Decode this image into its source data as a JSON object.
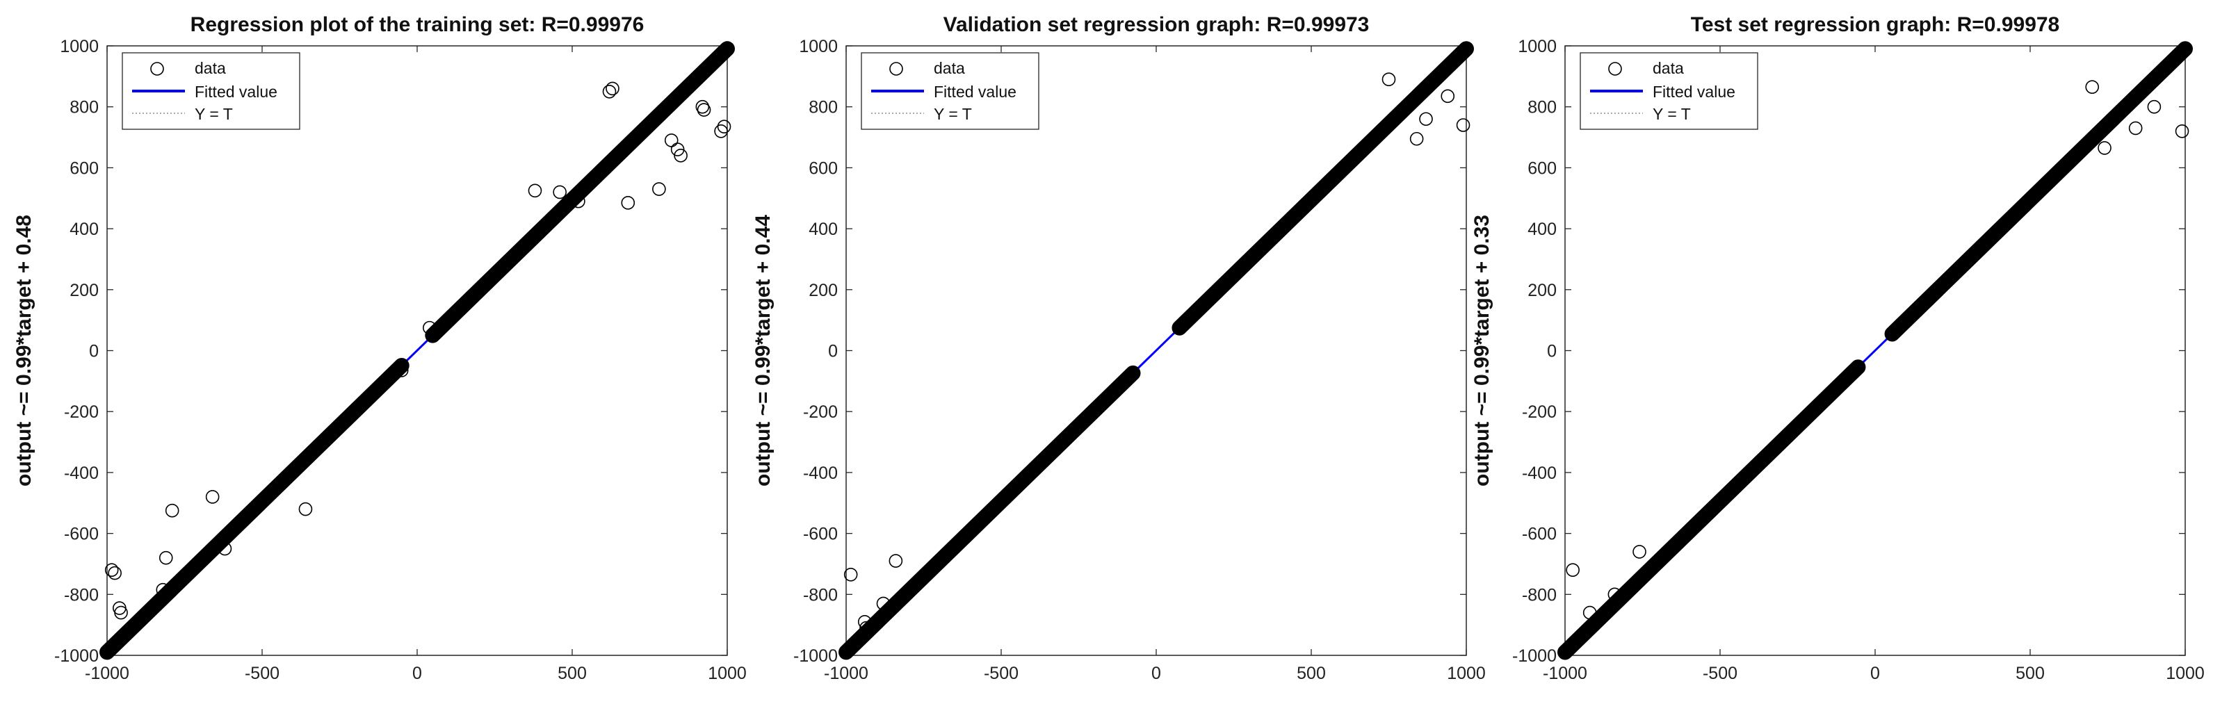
{
  "chart_data": [
    {
      "type": "scatter",
      "title": "Regression plot of the training set: R=0.99976",
      "xlabel": "",
      "ylabel": "output ~= 0.99*target + 0.48",
      "xlim": [
        -1000,
        1000
      ],
      "ylim": [
        -1000,
        1000
      ],
      "xticks": [
        "-1000",
        "-500",
        "0",
        "500",
        "1000"
      ],
      "yticks": [
        "1000",
        "800",
        "600",
        "400",
        "200",
        "0",
        "-200",
        "-400",
        "-600",
        "-800",
        "-1000"
      ],
      "legend": {
        "position": "top-left",
        "entries": [
          "data",
          "Fitted value",
          "Y = T"
        ]
      },
      "fit": {
        "slope": 0.99,
        "intercept": 0.48
      },
      "series": [
        {
          "name": "data",
          "segments": [
            [
              -1000,
              -50
            ],
            [
              50,
              1000
            ]
          ],
          "outliers": [
            [
              -985,
              -720
            ],
            [
              -975,
              -730
            ],
            [
              -960,
              -845
            ],
            [
              -955,
              -860
            ],
            [
              -820,
              -785
            ],
            [
              -810,
              -680
            ],
            [
              -790,
              -525
            ],
            [
              -660,
              -480
            ],
            [
              -620,
              -650
            ],
            [
              -360,
              -520
            ],
            [
              -50,
              -65
            ],
            [
              40,
              75
            ],
            [
              380,
              525
            ],
            [
              460,
              520
            ],
            [
              520,
              490
            ],
            [
              620,
              850
            ],
            [
              630,
              860
            ],
            [
              680,
              485
            ],
            [
              780,
              530
            ],
            [
              820,
              690
            ],
            [
              840,
              660
            ],
            [
              850,
              640
            ],
            [
              920,
              800
            ],
            [
              925,
              790
            ],
            [
              980,
              720
            ],
            [
              990,
              735
            ]
          ]
        },
        {
          "name": "Fitted value"
        },
        {
          "name": "Y = T"
        }
      ]
    },
    {
      "type": "scatter",
      "title": "Validation set regression graph: R=0.99973",
      "xlabel": "",
      "ylabel": "output ~= 0.99*target + 0.44",
      "xlim": [
        -1000,
        1000
      ],
      "ylim": [
        -1000,
        1000
      ],
      "xticks": [
        "-1000",
        "-500",
        "0",
        "500",
        "1000"
      ],
      "yticks": [
        "1000",
        "800",
        "600",
        "400",
        "200",
        "0",
        "-200",
        "-400",
        "-600",
        "-800",
        "-1000"
      ],
      "legend": {
        "position": "top-left",
        "entries": [
          "data",
          "Fitted value",
          "Y = T"
        ]
      },
      "fit": {
        "slope": 0.99,
        "intercept": 0.44
      },
      "series": [
        {
          "name": "data",
          "segments": [
            [
              -1000,
              -75
            ],
            [
              75,
              1000
            ]
          ],
          "outliers": [
            [
              -985,
              -735
            ],
            [
              -940,
              -890
            ],
            [
              -935,
              -910
            ],
            [
              -880,
              -830
            ],
            [
              -840,
              -690
            ],
            [
              750,
              890
            ],
            [
              840,
              695
            ],
            [
              870,
              760
            ],
            [
              940,
              835
            ],
            [
              990,
              740
            ]
          ]
        },
        {
          "name": "Fitted value"
        },
        {
          "name": "Y = T"
        }
      ]
    },
    {
      "type": "scatter",
      "title": "Test set regression graph: R=0.99978",
      "xlabel": "",
      "ylabel": "output ~= 0.99*target + 0.33",
      "xlim": [
        -1000,
        1000
      ],
      "ylim": [
        -1000,
        1000
      ],
      "xticks": [
        "-1000",
        "-500",
        "0",
        "500",
        "1000"
      ],
      "yticks": [
        "1000",
        "800",
        "600",
        "400",
        "200",
        "0",
        "-200",
        "-400",
        "-600",
        "-800",
        "-1000"
      ],
      "legend": {
        "position": "top-left",
        "entries": [
          "data",
          "Fitted value",
          "Y = T"
        ]
      },
      "fit": {
        "slope": 0.99,
        "intercept": 0.33
      },
      "series": [
        {
          "name": "data",
          "segments": [
            [
              -1000,
              -55
            ],
            [
              55,
              1000
            ]
          ],
          "outliers": [
            [
              -975,
              -720
            ],
            [
              -920,
              -860
            ],
            [
              -840,
              -800
            ],
            [
              -760,
              -660
            ],
            [
              700,
              865
            ],
            [
              740,
              665
            ],
            [
              840,
              730
            ],
            [
              900,
              800
            ],
            [
              990,
              720
            ]
          ]
        },
        {
          "name": "Fitted value"
        },
        {
          "name": "Y = T"
        }
      ]
    }
  ],
  "colors": {
    "data": "#000000",
    "fit": "#0000ff",
    "identity": "#8c8c8c",
    "axes": "#262626"
  }
}
